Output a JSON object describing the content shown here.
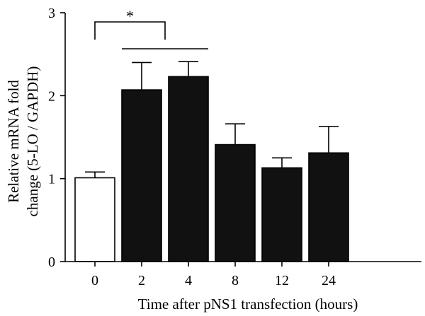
{
  "chart_data": {
    "type": "bar",
    "categories": [
      "0",
      "2",
      "4",
      "8",
      "12",
      "24"
    ],
    "values": [
      1.01,
      2.07,
      2.23,
      1.41,
      1.13,
      1.31
    ],
    "errors": [
      0.07,
      0.33,
      0.18,
      0.25,
      0.12,
      0.32
    ],
    "bar_fills": [
      "#ffffff",
      "#111111",
      "#111111",
      "#111111",
      "#111111",
      "#111111"
    ],
    "xlabel": "Time after pNS1 transfection (hours)",
    "ylabel_lines": [
      "Relative mRNA fold",
      "change (5-LO / GAPDH)"
    ],
    "ylim": [
      0,
      3
    ],
    "yticks": [
      "0",
      "1",
      "2",
      "3"
    ],
    "grid": false,
    "significance": {
      "label": "*",
      "from_category": "0",
      "to_categories": [
        "2",
        "4"
      ]
    }
  }
}
